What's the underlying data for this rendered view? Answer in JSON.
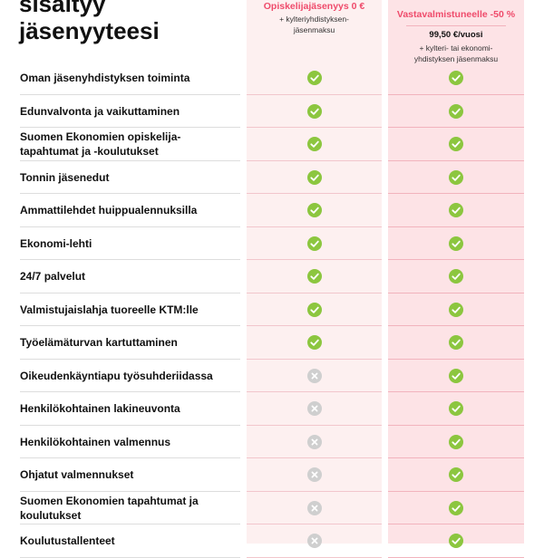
{
  "heading": {
    "line1": "sisältyy",
    "line2": "jäsenyyteesi"
  },
  "plans": [
    {
      "name": "Opiskelijajäsenyys 0 €",
      "price": "",
      "note": "+ kylteriyhdistyksen-jäsenmaksu"
    },
    {
      "name": "Vastavalmistuneelle -50 %",
      "price": "99,50 €/vuosi",
      "note": "+ kylteri- tai ekonomi-yhdistyksen jäsenmaksu"
    }
  ],
  "icons": {
    "included": "check-icon",
    "not_included": "cross-icon"
  },
  "colors": {
    "accent": "#ef4b6b",
    "check": "#8cc63f",
    "cross": "#cfcfcf",
    "student_column": "#fdf0f0",
    "graduate_column": "#fde3e6"
  },
  "benefits": [
    {
      "label": "Oman jäsenyhdistyksen toiminta",
      "student": true,
      "graduate": true
    },
    {
      "label": "Edunvalvonta ja vaikuttaminen",
      "student": true,
      "graduate": true
    },
    {
      "label": "Suomen Ekonomien opiskelija-tapahtumat ja -koulutukset",
      "student": true,
      "graduate": true
    },
    {
      "label": "Tonnin jäsenedut",
      "student": true,
      "graduate": true
    },
    {
      "label": "Ammattilehdet huippualennuksilla",
      "student": true,
      "graduate": true
    },
    {
      "label": "Ekonomi-lehti",
      "student": true,
      "graduate": true
    },
    {
      "label": "24/7 palvelut",
      "student": true,
      "graduate": true
    },
    {
      "label": "Valmistujaislahja tuoreelle KTM:lle",
      "student": true,
      "graduate": true
    },
    {
      "label": "Työelämäturvan kartuttaminen",
      "student": true,
      "graduate": true
    },
    {
      "label": "Oikeudenkäyntiapu työsuhderiidassa",
      "student": false,
      "graduate": true
    },
    {
      "label": "Henkilökohtainen lakineuvonta",
      "student": false,
      "graduate": true
    },
    {
      "label": "Henkilökohtainen valmennus",
      "student": false,
      "graduate": true
    },
    {
      "label": "Ohjatut valmennukset",
      "student": false,
      "graduate": true
    },
    {
      "label": "Suomen Ekonomien tapahtumat ja koulutukset",
      "student": false,
      "graduate": true
    },
    {
      "label": "Koulutustallenteet",
      "student": false,
      "graduate": true
    }
  ]
}
